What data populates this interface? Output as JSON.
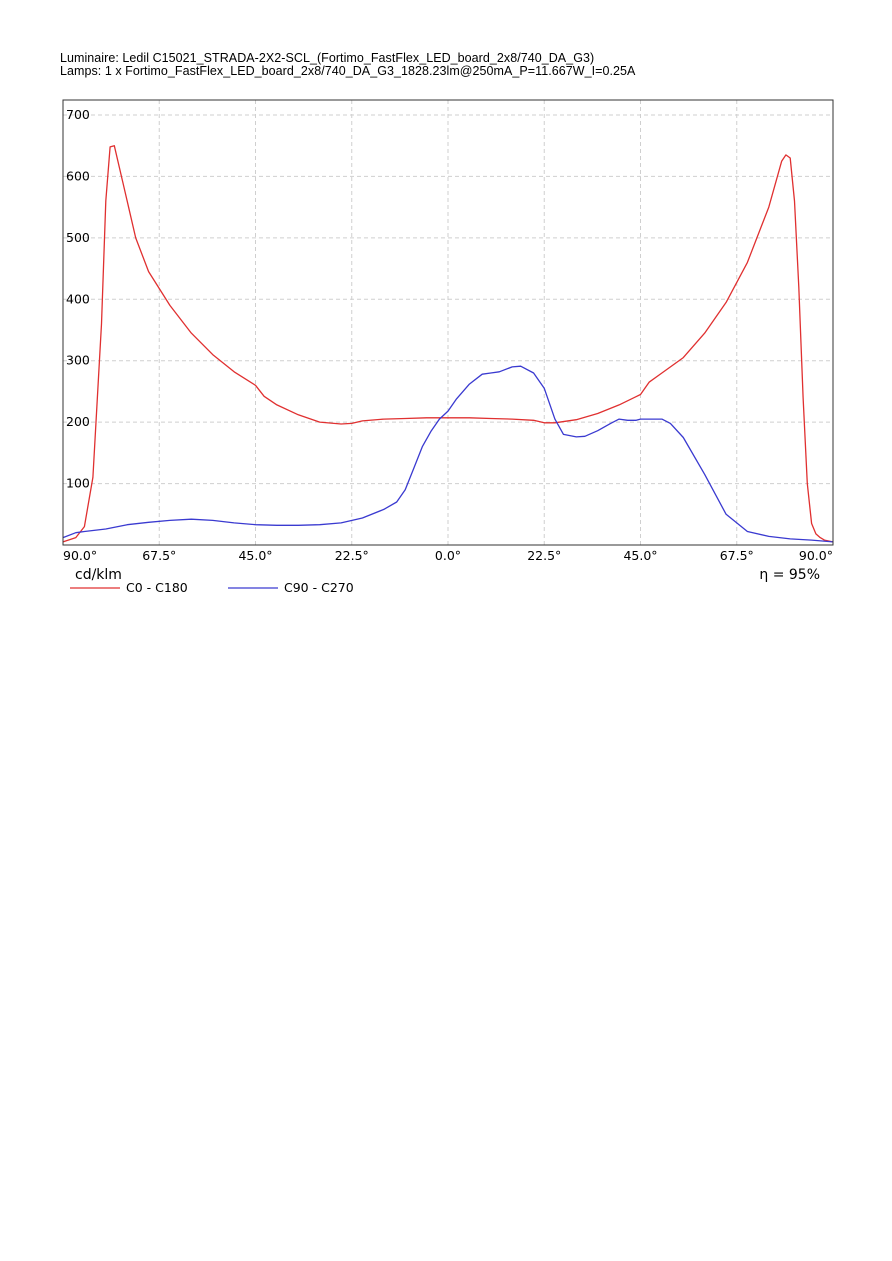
{
  "header": {
    "luminaire": "Luminaire: Ledil C15021_STRADA-2X2-SCL_(Fortimo_FastFlex_LED_board_2x8/740_DA_G3)",
    "lamps": "Lamps: 1 x Fortimo_FastFlex_LED_board_2x8/740_DA_G3_1828.23lm@250mA_P=11.667W_I=0.25A"
  },
  "chart_data": {
    "type": "line",
    "unit_label": "cd/klm",
    "efficiency_label": "η = 95%",
    "y_ticks": [
      "100",
      "200",
      "300",
      "400",
      "500",
      "600",
      "700"
    ],
    "x_ticks": [
      "90.0°",
      "67.5°",
      "45.0°",
      "22.5°",
      "0.0°",
      "22.5°",
      "45.0°",
      "67.5°",
      "90.0°"
    ],
    "xlim": [
      -90,
      90
    ],
    "ylim": [
      0,
      700
    ],
    "grid": true,
    "legend_position": "bottom",
    "series": [
      {
        "name": "C0 - C180",
        "color": "#e03030",
        "x": [
          -90,
          -87,
          -85,
          -83,
          -81,
          -80,
          -79,
          -78,
          -76,
          -73,
          -70,
          -65,
          -60,
          -55,
          -50,
          -45,
          -43,
          -40,
          -35,
          -30,
          -25,
          -22.5,
          -20,
          -15,
          -10,
          -5,
          0,
          5,
          10,
          15,
          20,
          22.5,
          25,
          30,
          35,
          40,
          45,
          47,
          50,
          55,
          60,
          65,
          70,
          75,
          77,
          78,
          79,
          80,
          81,
          82,
          83,
          84,
          85,
          86,
          87,
          88,
          90
        ],
        "y": [
          5,
          12,
          30,
          110,
          360,
          560,
          648,
          650,
          590,
          500,
          445,
          390,
          345,
          310,
          282,
          260,
          242,
          228,
          212,
          200,
          197,
          198,
          202,
          205,
          206,
          207,
          207,
          207,
          206,
          205,
          203,
          199,
          199,
          204,
          214,
          228,
          245,
          265,
          280,
          305,
          345,
          395,
          460,
          550,
          600,
          625,
          635,
          630,
          560,
          420,
          240,
          100,
          35,
          18,
          12,
          8,
          5
        ]
      },
      {
        "name": "C90 - C270",
        "color": "#3a3ad0",
        "x": [
          -90,
          -87,
          -85,
          -80,
          -75,
          -70,
          -65,
          -60,
          -55,
          -50,
          -45,
          -40,
          -35,
          -30,
          -25,
          -20,
          -15,
          -12,
          -10,
          -8,
          -6,
          -4,
          -2,
          0,
          2,
          5,
          8,
          10,
          12,
          15,
          17,
          20,
          22.5,
          25,
          27,
          30,
          32,
          35,
          38,
          40,
          42,
          44,
          45,
          47,
          50,
          52,
          55,
          60,
          65,
          70,
          75,
          80,
          85,
          90
        ],
        "y": [
          12,
          20,
          22,
          26,
          33,
          37,
          40,
          42,
          40,
          36,
          33,
          32,
          32,
          33,
          36,
          44,
          58,
          70,
          90,
          125,
          160,
          185,
          205,
          218,
          238,
          262,
          278,
          280,
          282,
          290,
          291,
          280,
          255,
          205,
          180,
          176,
          177,
          186,
          198,
          205,
          203,
          203,
          205,
          205,
          205,
          198,
          175,
          115,
          50,
          22,
          14,
          10,
          8,
          5
        ]
      }
    ]
  }
}
